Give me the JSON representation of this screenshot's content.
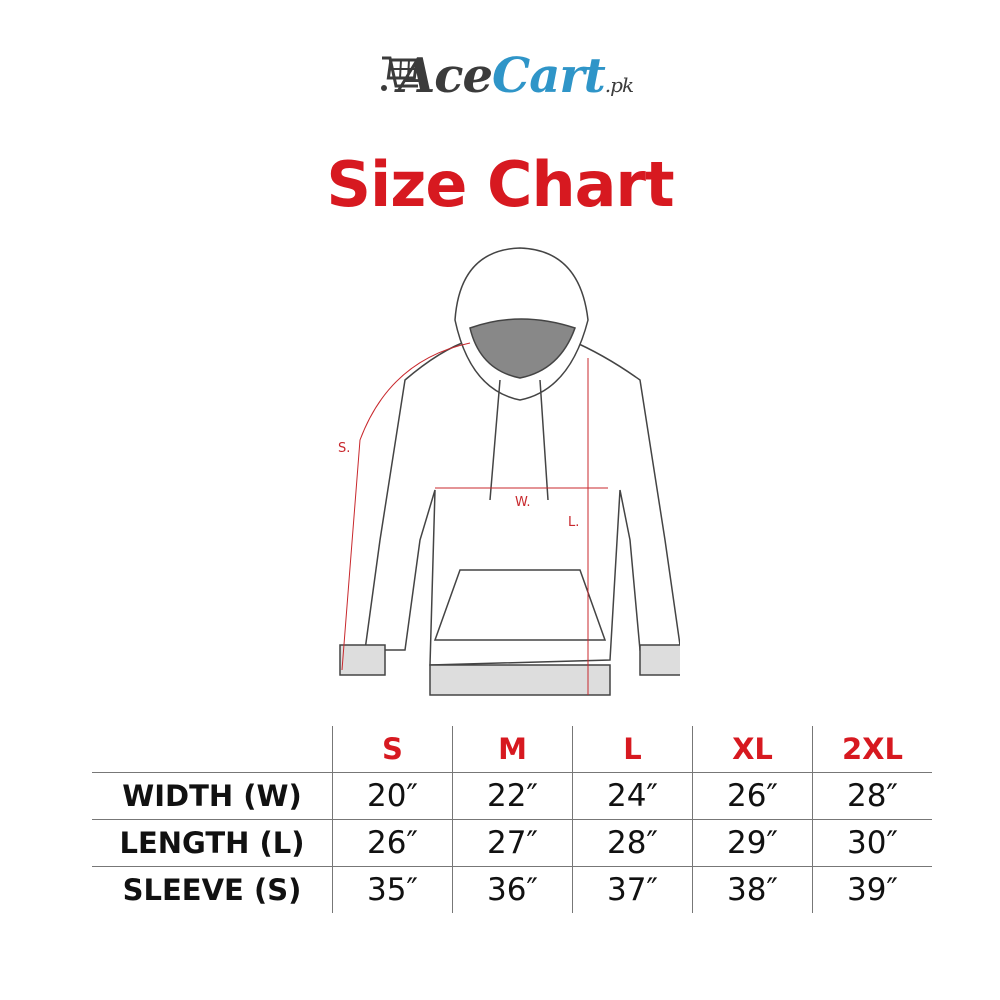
{
  "brand": {
    "name_part1": "Ace",
    "name_part2": "Cart",
    "suffix": ".pk",
    "colors": {
      "dark": "#3b3b3b",
      "blue": "#2f95c8"
    }
  },
  "title": "Size Chart",
  "diagram": {
    "labels": {
      "sleeve": "S.",
      "width": "W.",
      "length": "L."
    },
    "measure_color": "#c8282d"
  },
  "table": {
    "sizes": [
      "S",
      "M",
      "L",
      "XL",
      "2XL"
    ],
    "rows": [
      {
        "label": "WIDTH (W)",
        "values": [
          "20″",
          "22″",
          "24″",
          "26″",
          "28″"
        ]
      },
      {
        "label": "LENGTH (L)",
        "values": [
          "26″",
          "27″",
          "28″",
          "29″",
          "30″"
        ]
      },
      {
        "label": "SLEEVE (S)",
        "values": [
          "35″",
          "36″",
          "37″",
          "38″",
          "39″"
        ]
      }
    ]
  },
  "accent_color": "#d71920"
}
